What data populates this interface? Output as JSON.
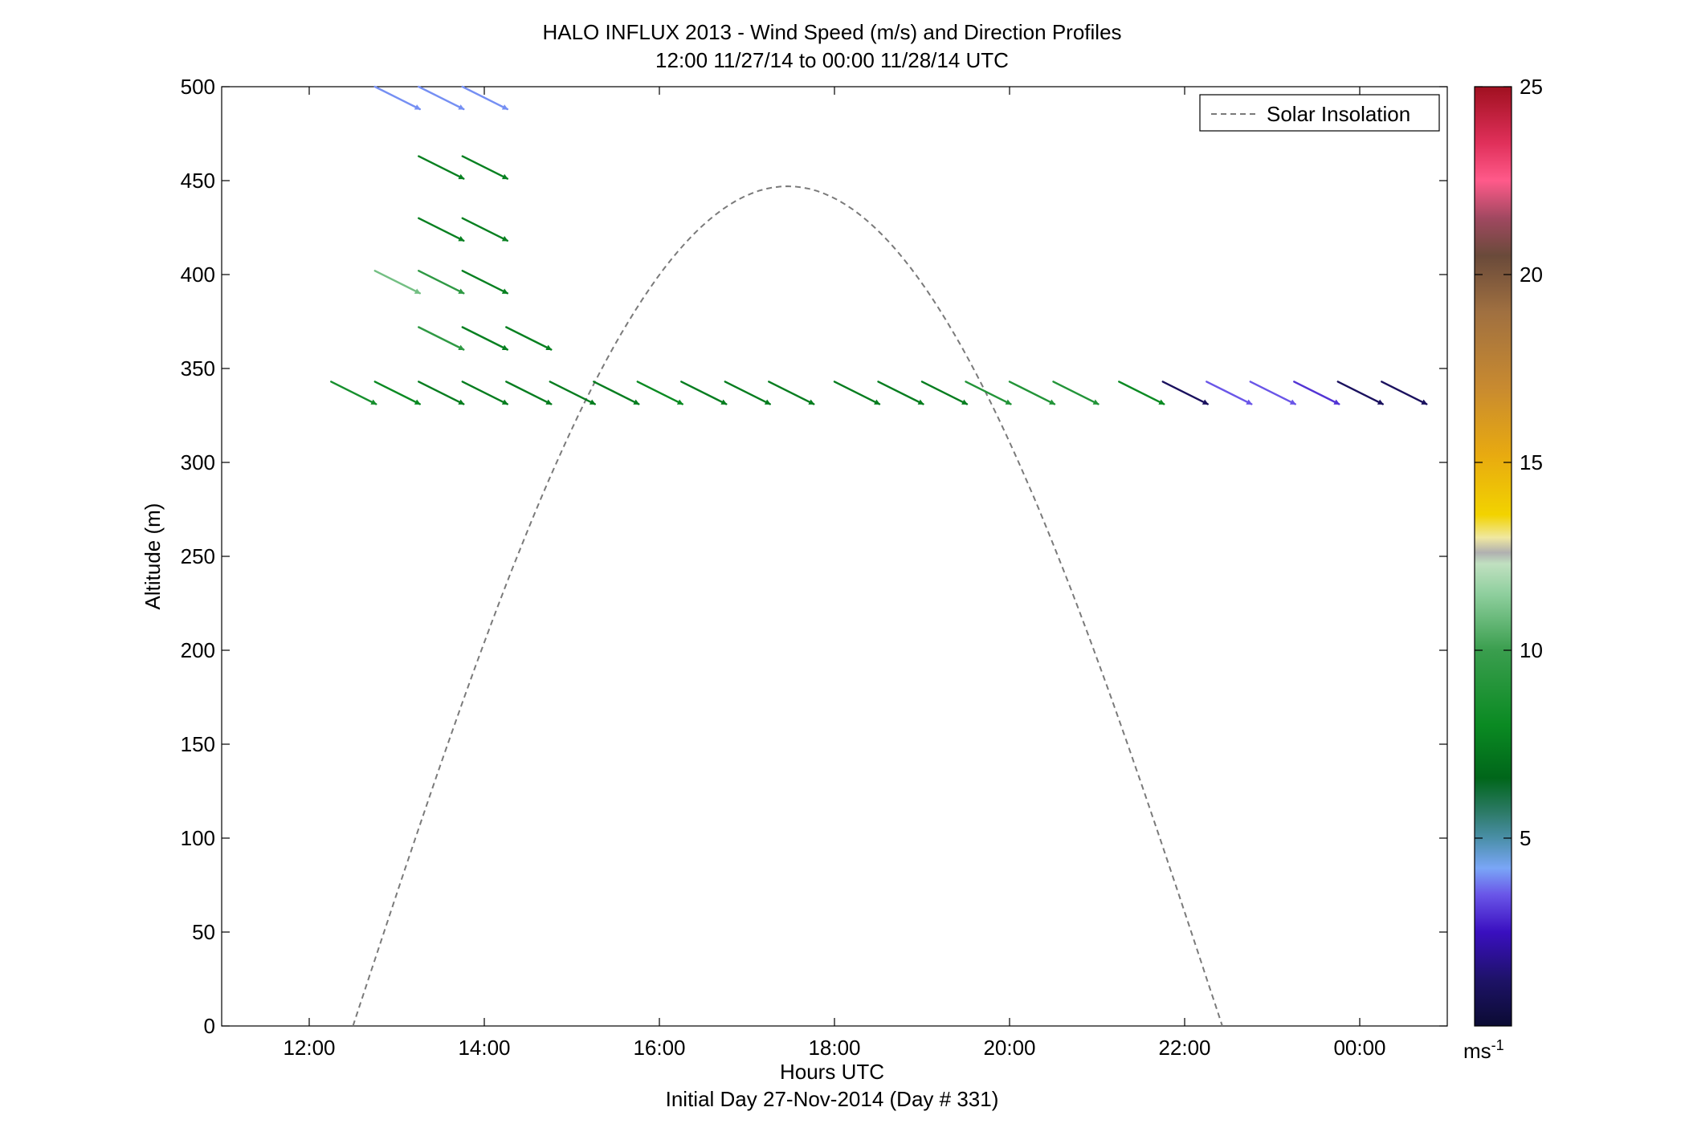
{
  "chart_data": {
    "type": "scatter",
    "subtype": "wind-barb vectors (arrow length and color = speed, angle = direction)",
    "title": "HALO INFLUX 2013 - Wind Speed (m/s) and Direction Profiles",
    "subtitle": "12:00 11/27/14 to 00:00 11/28/14  UTC",
    "xlabel": "Hours UTC",
    "xlabel2": "Initial Day 27-Nov-2014 (Day # 331)",
    "ylabel": "Altitude (m)",
    "xlim": [
      11,
      25
    ],
    "ylim": [
      0,
      500
    ],
    "x_ticks": [
      {
        "value": 12,
        "label": "12:00"
      },
      {
        "value": 14,
        "label": "14:00"
      },
      {
        "value": 16,
        "label": "16:00"
      },
      {
        "value": 18,
        "label": "18:00"
      },
      {
        "value": 20,
        "label": "20:00"
      },
      {
        "value": 22,
        "label": "22:00"
      },
      {
        "value": 24,
        "label": "00:00"
      }
    ],
    "y_ticks": [
      0,
      50,
      100,
      150,
      200,
      250,
      300,
      350,
      400,
      450,
      500
    ],
    "grid": false,
    "legend": {
      "placement": "top-right",
      "entries": [
        {
          "label": "Solar Insolation",
          "style": "dashed",
          "color": "#7a7a7a"
        }
      ]
    },
    "solar_insolation": {
      "rise_hour": 12.5,
      "set_hour": 22.43,
      "peak_hour": 17.47,
      "peak_altitude": 447
    },
    "colorbar": {
      "min": 0,
      "max": 25,
      "ticks": [
        5,
        10,
        15,
        20,
        25
      ],
      "unit": "ms",
      "unit_exponent": "-1",
      "stops": [
        {
          "v": 0,
          "c": "#0b0b33"
        },
        {
          "v": 1.2,
          "c": "#1d1266"
        },
        {
          "v": 2.5,
          "c": "#3a0fc0"
        },
        {
          "v": 3.5,
          "c": "#6a56e8"
        },
        {
          "v": 4.2,
          "c": "#7aa6f7"
        },
        {
          "v": 5.0,
          "c": "#4a8fa8"
        },
        {
          "v": 5.7,
          "c": "#2c7a66"
        },
        {
          "v": 6.6,
          "c": "#00661a"
        },
        {
          "v": 8.0,
          "c": "#0a8a22"
        },
        {
          "v": 10.0,
          "c": "#3a9e4e"
        },
        {
          "v": 11.5,
          "c": "#8fcf9e"
        },
        {
          "v": 12.3,
          "c": "#c0e0c0"
        },
        {
          "v": 12.6,
          "c": "#b0b0b0"
        },
        {
          "v": 13.0,
          "c": "#f0e8a0"
        },
        {
          "v": 13.6,
          "c": "#f2d300"
        },
        {
          "v": 15.2,
          "c": "#e8aa10"
        },
        {
          "v": 17.0,
          "c": "#c88a30"
        },
        {
          "v": 19.0,
          "c": "#a07040"
        },
        {
          "v": 20.5,
          "c": "#6a4a3a"
        },
        {
          "v": 21.5,
          "c": "#a04860"
        },
        {
          "v": 22.5,
          "c": "#ff5a8a"
        },
        {
          "v": 23.5,
          "c": "#e0305a"
        },
        {
          "v": 25.0,
          "c": "#a01020"
        }
      ]
    },
    "vectors": [
      {
        "t": 12.75,
        "z": 500,
        "u": 4.0,
        "v": -2.0,
        "s": 4
      },
      {
        "t": 13.25,
        "z": 500,
        "u": 4.0,
        "v": -2.0,
        "s": 4
      },
      {
        "t": 13.75,
        "z": 500,
        "u": 4.0,
        "v": -2.0,
        "s": 4
      },
      {
        "t": 13.25,
        "z": 463,
        "u": 4.0,
        "v": -2.0,
        "s": 7.6
      },
      {
        "t": 13.75,
        "z": 463,
        "u": 4.0,
        "v": -2.0,
        "s": 7.6
      },
      {
        "t": 13.25,
        "z": 430,
        "u": 4.0,
        "v": -2.0,
        "s": 7.6
      },
      {
        "t": 13.75,
        "z": 430,
        "u": 4.0,
        "v": -2.0,
        "s": 7.6
      },
      {
        "t": 12.75,
        "z": 402,
        "u": 4.0,
        "v": -2.0,
        "s": 11
      },
      {
        "t": 13.25,
        "z": 402,
        "u": 4.0,
        "v": -2.0,
        "s": 9.5
      },
      {
        "t": 13.75,
        "z": 402,
        "u": 4.0,
        "v": -2.0,
        "s": 7.6
      },
      {
        "t": 13.25,
        "z": 372,
        "u": 4.0,
        "v": -2.0,
        "s": 9.5
      },
      {
        "t": 13.75,
        "z": 372,
        "u": 4.0,
        "v": -2.0,
        "s": 7.6
      },
      {
        "t": 14.25,
        "z": 372,
        "u": 4.0,
        "v": -2.0,
        "s": 7.6
      },
      {
        "t": 12.25,
        "z": 343,
        "u": 4.0,
        "v": -2.0,
        "s": 8.5
      },
      {
        "t": 12.75,
        "z": 343,
        "u": 4.0,
        "v": -2.0,
        "s": 8
      },
      {
        "t": 13.25,
        "z": 343,
        "u": 4.0,
        "v": -2.0,
        "s": 7.5
      },
      {
        "t": 13.75,
        "z": 343,
        "u": 4.0,
        "v": -2.0,
        "s": 7.5
      },
      {
        "t": 14.25,
        "z": 343,
        "u": 4.0,
        "v": -2.0,
        "s": 7.5
      },
      {
        "t": 14.75,
        "z": 343,
        "u": 4.0,
        "v": -2.0,
        "s": 7.5
      },
      {
        "t": 15.25,
        "z": 343,
        "u": 4.0,
        "v": -2.0,
        "s": 7.5
      },
      {
        "t": 15.75,
        "z": 343,
        "u": 4.0,
        "v": -2.0,
        "s": 8
      },
      {
        "t": 16.25,
        "z": 343,
        "u": 4.0,
        "v": -2.0,
        "s": 7.5
      },
      {
        "t": 16.75,
        "z": 343,
        "u": 4.0,
        "v": -2.0,
        "s": 7.5
      },
      {
        "t": 17.25,
        "z": 343,
        "u": 4.0,
        "v": -2.0,
        "s": 7.5
      },
      {
        "t": 18.0,
        "z": 343,
        "u": 4.0,
        "v": -2.0,
        "s": 7.5
      },
      {
        "t": 18.5,
        "z": 343,
        "u": 4.0,
        "v": -2.0,
        "s": 7.5
      },
      {
        "t": 19.0,
        "z": 343,
        "u": 4.0,
        "v": -2.0,
        "s": 7.5
      },
      {
        "t": 19.5,
        "z": 343,
        "u": 4.0,
        "v": -2.0,
        "s": 9
      },
      {
        "t": 20.0,
        "z": 343,
        "u": 4.0,
        "v": -2.0,
        "s": 9
      },
      {
        "t": 20.5,
        "z": 343,
        "u": 4.0,
        "v": -2.0,
        "s": 9
      },
      {
        "t": 21.25,
        "z": 343,
        "u": 4.0,
        "v": -2.0,
        "s": 8
      },
      {
        "t": 21.75,
        "z": 343,
        "u": 4.0,
        "v": -2.0,
        "s": 1
      },
      {
        "t": 22.25,
        "z": 343,
        "u": 4.0,
        "v": -2.0,
        "s": 3.5
      },
      {
        "t": 22.75,
        "z": 343,
        "u": 4.0,
        "v": -2.0,
        "s": 3.5
      },
      {
        "t": 23.25,
        "z": 343,
        "u": 4.0,
        "v": -2.0,
        "s": 3
      },
      {
        "t": 23.75,
        "z": 343,
        "u": 4.0,
        "v": -2.0,
        "s": 1
      },
      {
        "t": 24.25,
        "z": 343,
        "u": 4.0,
        "v": -2.0,
        "s": 1
      }
    ]
  }
}
